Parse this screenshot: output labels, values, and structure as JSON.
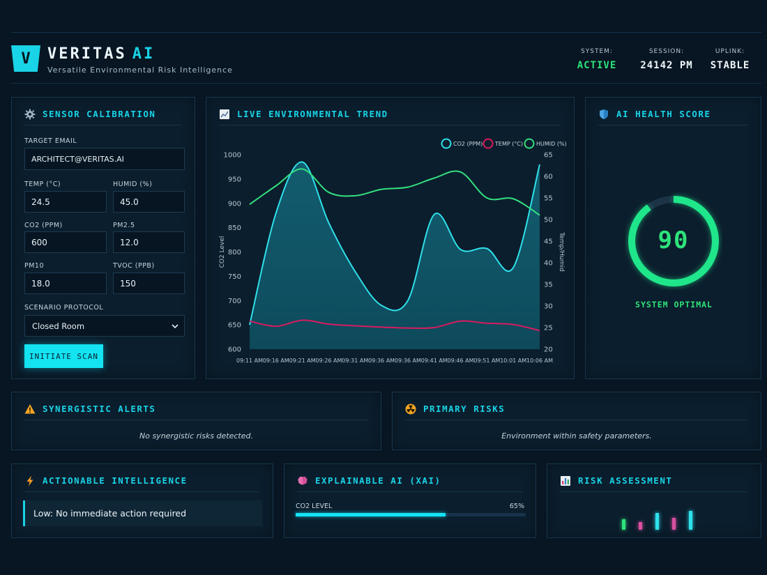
{
  "header": {
    "brand_name": "VERITAS",
    "brand_suffix": "AI",
    "logo_letter": "V",
    "subtitle": "Versatile Environmental Risk Intelligence",
    "stats": [
      {
        "label": "SYSTEM:",
        "value": "ACTIVE"
      },
      {
        "label": "SESSION:",
        "value": "24142 PM"
      },
      {
        "label": "UPLINK:",
        "value": "STABLE"
      }
    ]
  },
  "colors": {
    "accent": "#19d3e6",
    "good": "#2de37a",
    "co2": "#2fe0ea",
    "temp": "#d81b60",
    "humid": "#34e07f",
    "warning": "#f3a523",
    "panel_bg": "#0b1e2d"
  },
  "sensor": {
    "title": "SENSOR CALIBRATION",
    "icon": "gear-icon",
    "email_label": "TARGET EMAIL",
    "email_value": "ARCHITECT@VERITAS.AI",
    "temp_label": "TEMP (°C)",
    "temp_value": "24.5",
    "humid_label": "HUMID (%)",
    "humid_value": "45.0",
    "co2_label": "CO2 (PPM)",
    "co2_value": "600",
    "pm25_label": "PM2.5",
    "pm25_value": "12.0",
    "pm10_label": "PM10",
    "pm10_value": "18.0",
    "tvoc_label": "TVOC (PPB)",
    "tvoc_value": "150",
    "scenario_label": "SCENARIO PROTOCOL",
    "scenario_value": "Closed Room",
    "scan_button": "INITIATE SCAN"
  },
  "trend": {
    "title": "LIVE ENVIRONMENTAL TREND",
    "icon": "chart-icon"
  },
  "health": {
    "title": "AI HEALTH SCORE",
    "icon": "shield-icon",
    "score": "90",
    "score_value": 90,
    "status": "SYSTEM OPTIMAL"
  },
  "alerts": {
    "title": "SYNERGISTIC ALERTS",
    "icon": "warning-icon",
    "message": "No synergistic risks detected."
  },
  "risks": {
    "title": "PRIMARY RISKS",
    "icon": "radiation-icon",
    "message": "Environment within safety parameters."
  },
  "intel": {
    "title": "ACTIONABLE INTELLIGENCE",
    "icon": "lightning-icon",
    "message": "Low: No immediate action required"
  },
  "xai": {
    "title": "EXPLAINABLE AI (XAI)",
    "icon": "brain-icon",
    "factor_label": "CO2 LEVEL",
    "factor_percent_text": "65%",
    "factor_percent": 65
  },
  "assessment": {
    "title": "RISK ASSESSMENT",
    "icon": "bar-chart-icon",
    "bars": [
      {
        "value": 0.35,
        "color": "#2de37a"
      },
      {
        "value": 0.25,
        "color": "#d94fa0"
      },
      {
        "value": 0.55,
        "color": "#2fe0ea"
      },
      {
        "value": 0.38,
        "color": "#d94fa0"
      },
      {
        "value": 0.62,
        "color": "#2fe0ea"
      }
    ]
  },
  "chart_data": {
    "type": "line",
    "title": "",
    "x": [
      "09:11 AM",
      "09:16 AM",
      "09:21 AM",
      "09:26 AM",
      "09:31 AM",
      "09:36 AM",
      "09:36 AM",
      "09:41 AM",
      "09:46 AM",
      "09:51 AM",
      "10:01 AM",
      "10:06 AM"
    ],
    "ylabel": "CO2 Level",
    "y2label": "Temp/Humid",
    "ylim": [
      600,
      1000
    ],
    "y_ticks": [
      1000,
      950,
      900,
      850,
      800,
      750,
      700,
      650,
      600
    ],
    "y2lim": [
      20,
      65
    ],
    "y2_ticks": [
      65,
      60,
      55,
      50,
      45,
      40,
      35,
      30,
      25,
      20
    ],
    "legend_position": "top-right",
    "grid": false,
    "series": [
      {
        "name": "CO2 (PPM)",
        "axis": "left",
        "color": "#2fe0ea",
        "fill": true,
        "values": [
          650,
          880,
          985,
          860,
          760,
          690,
          700,
          877,
          805,
          807,
          768,
          980
        ]
      },
      {
        "name": "TEMP (°C)",
        "axis": "right",
        "color": "#d81b60",
        "fill": false,
        "values": [
          26.5,
          25.3,
          26.7,
          25.8,
          25.4,
          25.1,
          24.9,
          25.0,
          26.5,
          26.0,
          25.7,
          24.3
        ]
      },
      {
        "name": "HUMID (%)",
        "axis": "right",
        "color": "#34e07f",
        "fill": false,
        "values": [
          53.5,
          57.8,
          61.7,
          56.3,
          55.5,
          57.0,
          57.5,
          59.6,
          61.0,
          55.0,
          54.8,
          51.0
        ]
      }
    ]
  }
}
